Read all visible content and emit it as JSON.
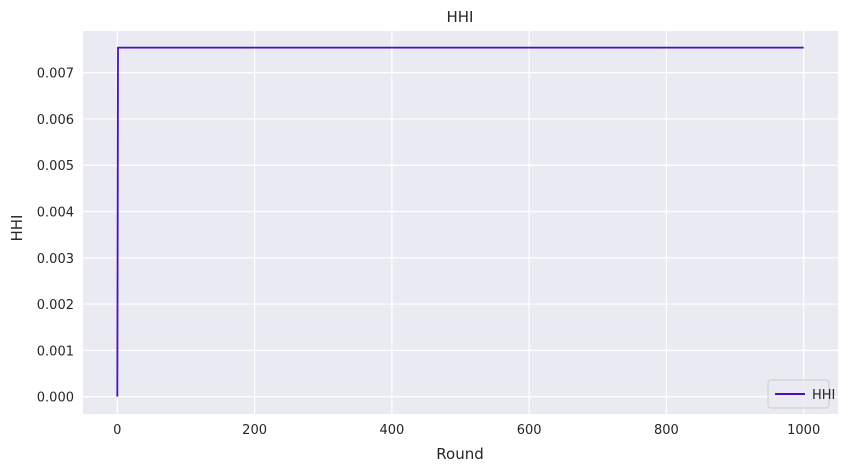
{
  "chart_data": {
    "type": "line",
    "title": "HHI",
    "xlabel": "Round",
    "ylabel": "HHI",
    "xlim": [
      -50,
      1050
    ],
    "ylim": [
      -0.000375,
      0.0079
    ],
    "xticks": [
      0,
      200,
      400,
      600,
      800,
      1000
    ],
    "xtick_labels": [
      "0",
      "200",
      "400",
      "600",
      "800",
      "1000"
    ],
    "yticks": [
      0.0,
      0.001,
      0.002,
      0.003,
      0.004,
      0.005,
      0.006,
      0.007
    ],
    "ytick_labels": [
      "0.000",
      "0.001",
      "0.002",
      "0.003",
      "0.004",
      "0.005",
      "0.006",
      "0.007"
    ],
    "grid": true,
    "legend_position": "lower-right",
    "series": [
      {
        "name": "HHI",
        "color": "#4b0fbf",
        "x": [
          0,
          1,
          1000
        ],
        "y": [
          0.0,
          0.00754,
          0.00754
        ]
      }
    ]
  },
  "colors": {
    "plot_background": "#eaeaf2",
    "grid": "#ffffff",
    "text": "#262626"
  }
}
